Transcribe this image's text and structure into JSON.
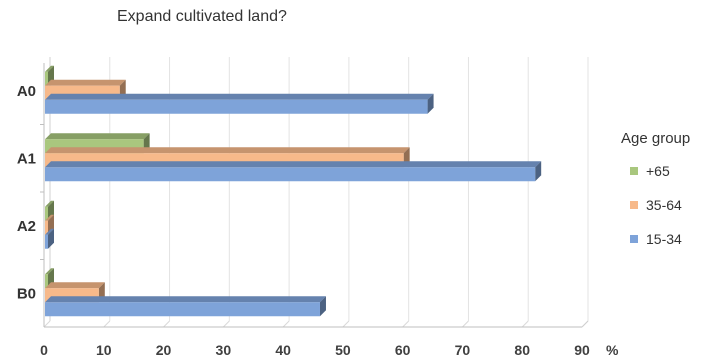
{
  "chart_data": {
    "type": "bar",
    "orientation": "horizontal",
    "style": "3d-clustered",
    "title": "Expand cultivated land?",
    "xlabel": "",
    "ylabel": "",
    "x_unit": "%",
    "xlim": [
      0,
      90
    ],
    "x_ticks": [
      "0",
      "10",
      "20",
      "30",
      "40",
      "50",
      "60",
      "70",
      "80",
      "90"
    ],
    "grid": true,
    "categories": [
      "A0",
      "A1",
      "A2",
      "B0"
    ],
    "legend": {
      "title": "Age group",
      "placement": "right"
    },
    "series": [
      {
        "name": "+65",
        "color": "#a9c77e",
        "values": [
          0.5,
          16.5,
          0,
          0.5
        ]
      },
      {
        "name": "35-64",
        "color": "#f7b98a",
        "values": [
          12.5,
          60,
          0,
          9
        ]
      },
      {
        "name": "15-34",
        "color": "#7ea3d9",
        "values": [
          64,
          82,
          0,
          46
        ]
      }
    ]
  }
}
